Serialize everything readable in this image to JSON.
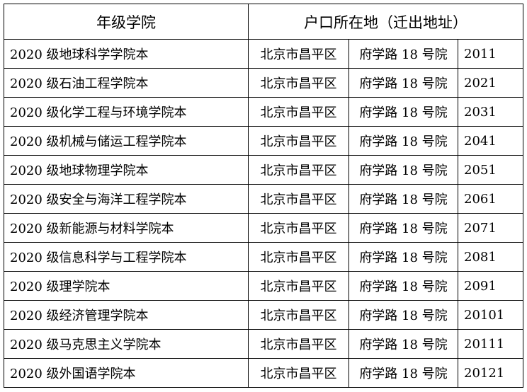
{
  "header": {
    "col1": "年级学院",
    "col2": "户口所在地（迁出地址）"
  },
  "rows": [
    {
      "college": "2020 级地球科学学院本",
      "district": "北京市昌平区",
      "street": "府学路 18 号院",
      "code": "2011"
    },
    {
      "college": "2020 级石油工程学院本",
      "district": "北京市昌平区",
      "street": "府学路 18 号院",
      "code": "2021"
    },
    {
      "college": "2020 级化学工程与环境学院本",
      "district": "北京市昌平区",
      "street": "府学路 18 号院",
      "code": "2031"
    },
    {
      "college": "2020 级机械与储运工程学院本",
      "district": "北京市昌平区",
      "street": "府学路 18 号院",
      "code": "2041"
    },
    {
      "college": "2020 级地球物理学院本",
      "district": "北京市昌平区",
      "street": "府学路 18 号院",
      "code": "2051"
    },
    {
      "college": "2020 级安全与海洋工程学院本",
      "district": "北京市昌平区",
      "street": "府学路 18 号院",
      "code": "2061"
    },
    {
      "college": "2020 级新能源与材料学院本",
      "district": "北京市昌平区",
      "street": "府学路 18 号院",
      "code": "2071"
    },
    {
      "college": "2020 级信息科学与工程学院本",
      "district": "北京市昌平区",
      "street": "府学路 18 号院",
      "code": "2081"
    },
    {
      "college": "2020 级理学院本",
      "district": "北京市昌平区",
      "street": "府学路 18 号院",
      "code": "2091"
    },
    {
      "college": "2020 级经济管理学院本",
      "district": "北京市昌平区",
      "street": "府学路 18 号院",
      "code": "20101"
    },
    {
      "college": "2020 级马克思主义学院本",
      "district": "北京市昌平区",
      "street": "府学路 18 号院",
      "code": "20111"
    },
    {
      "college": "2020 级外国语学院本",
      "district": "北京市昌平区",
      "street": "府学路 18 号院",
      "code": "20121"
    }
  ]
}
